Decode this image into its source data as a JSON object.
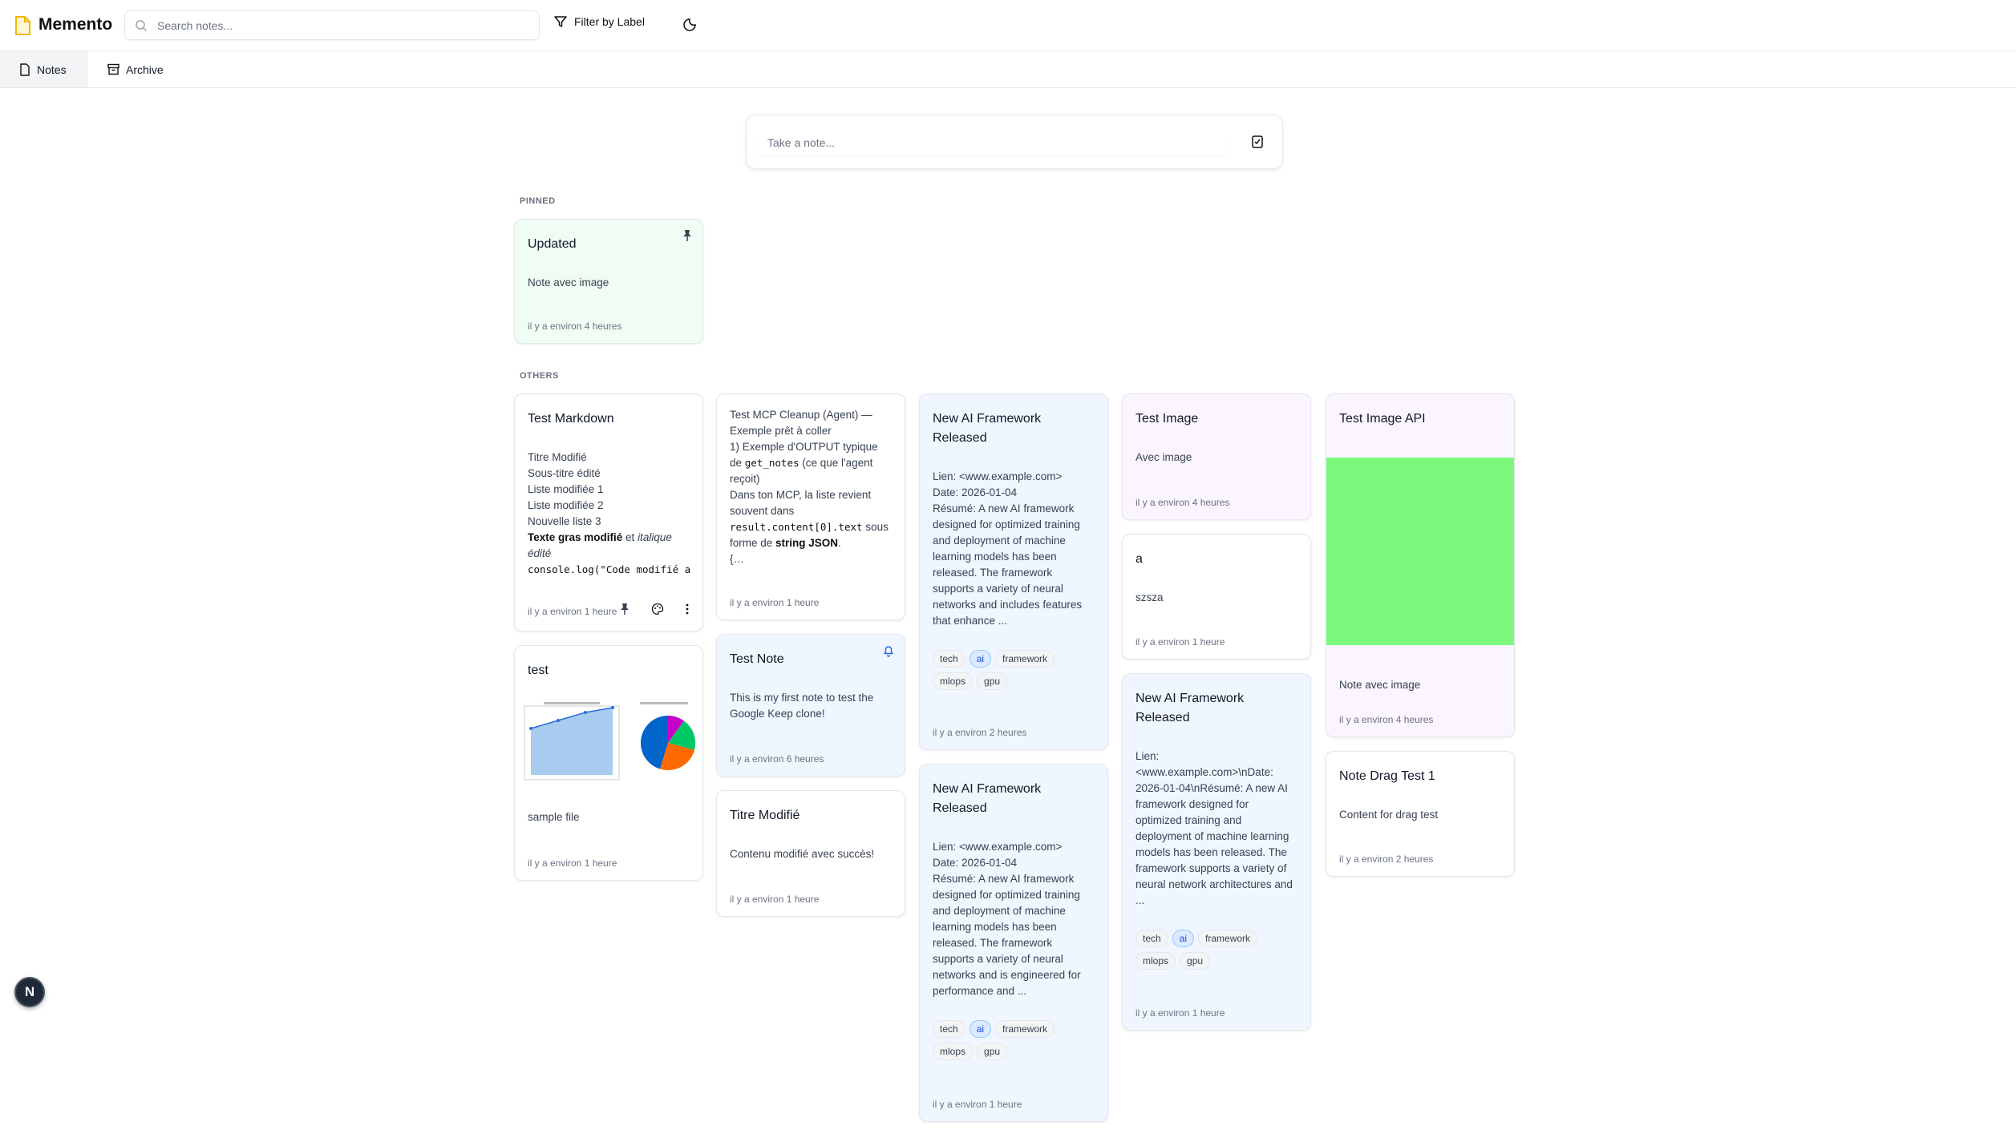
{
  "header": {
    "app_title": "Memento",
    "search_placeholder": "Search notes...",
    "filter_label": "Filter by Label"
  },
  "tabs": [
    {
      "label": "Notes",
      "active": true
    },
    {
      "label": "Archive",
      "active": false
    }
  ],
  "composer": {
    "placeholder": "Take a note..."
  },
  "sections": {
    "pinned": "PINNED",
    "others": "OTHERS"
  },
  "colors": {
    "accent": "#f5b400",
    "pinned_card": "#f0fdf4",
    "blue_card": "#eff6ff",
    "purple_card": "#faf5ff",
    "tag_highlight": "#dbeafe",
    "image_green": "#7cf97c"
  },
  "fab": {
    "label": "N"
  },
  "pinned": [
    {
      "title": "Updated",
      "body": [
        [
          {
            "t": "Note avec image"
          }
        ]
      ],
      "timestamp": "il y a environ 4 heures",
      "color": "#f0fdf4",
      "corner_icon": "pin-icon"
    }
  ],
  "columns": [
    [
      {
        "title": "Test Markdown",
        "body": [
          [
            {
              "t": "Titre Modifié"
            }
          ],
          [
            {
              "t": "Sous-titre édité"
            }
          ],
          [
            {
              "t": "Liste modifiée 1"
            }
          ],
          [
            {
              "t": "Liste modifiée 2"
            }
          ],
          [
            {
              "t": "Nouvelle liste 3"
            }
          ],
          [
            {
              "t": "Texte gras modifié",
              "s": "b"
            },
            {
              "t": " et "
            },
            {
              "t": "italique édité",
              "s": "i"
            }
          ],
          [
            {
              "t": "console.log(\"Code modifié a",
              "s": "code"
            }
          ]
        ],
        "timestamp": "il y a environ 1 heure",
        "color": "#ffffff",
        "actions": [
          "pin-icon",
          "palette-icon",
          "more-vertical-icon"
        ]
      },
      {
        "title": "test",
        "image": "charts",
        "body": [
          [
            {
              "t": "sample file"
            }
          ]
        ],
        "timestamp": "il y a environ 1 heure",
        "color": "#ffffff"
      }
    ],
    [
      {
        "body": [
          [
            {
              "t": "Test MCP Cleanup (Agent) — Exemple prêt à coller"
            }
          ],
          [
            {
              "t": "1) Exemple d'OUTPUT typique de "
            },
            {
              "t": "get_notes",
              "s": "code"
            },
            {
              "t": " (ce que l'agent reçoit)"
            }
          ],
          [
            {
              "t": "Dans ton MCP, la liste revient souvent dans "
            },
            {
              "t": "result.content[0].text",
              "s": "code"
            },
            {
              "t": " sous forme de "
            },
            {
              "t": "string JSON",
              "s": "b"
            },
            {
              "t": "."
            }
          ],
          [
            {
              "t": "{…"
            }
          ]
        ],
        "timestamp": "il y a environ 1 heure",
        "color": "#ffffff"
      },
      {
        "title": "Test Note",
        "body": [
          [
            {
              "t": "This is my first note to test the Google Keep clone!"
            }
          ]
        ],
        "timestamp": "il y a environ 6 heures",
        "color": "#eff6ff",
        "corner_icon": "bell-icon"
      },
      {
        "title": "Titre Modifié",
        "body": [
          [
            {
              "t": "Contenu modifié avec succès!"
            }
          ]
        ],
        "timestamp": "il y a environ 1 heure",
        "color": "#ffffff"
      }
    ],
    [
      {
        "title": "New AI Framework Released",
        "body": [
          [
            {
              "t": "Lien: <www.example.com>"
            }
          ],
          [
            {
              "t": "Date: 2026-01-04"
            }
          ],
          [
            {
              "t": "Résumé: A new AI framework designed for optimized training and deployment of machine learning models has been released. The framework supports a variety of neural networks and includes features that enhance ..."
            }
          ]
        ],
        "tags": [
          "tech",
          "ai",
          "framework",
          "mlops",
          "gpu"
        ],
        "highlight_tag": "ai",
        "timestamp": "il y a environ 2 heures",
        "color": "#eff6ff"
      },
      {
        "title": "New AI Framework Released",
        "body": [
          [
            {
              "t": "Lien: <www.example.com>"
            }
          ],
          [
            {
              "t": "Date: 2026-01-04"
            }
          ],
          [
            {
              "t": "Résumé: A new AI framework designed for optimized training and deployment of machine learning models has been released. The framework supports a variety of neural networks and is engineered for performance and ..."
            }
          ]
        ],
        "tags": [
          "tech",
          "ai",
          "framework",
          "mlops",
          "gpu"
        ],
        "highlight_tag": "ai",
        "timestamp": "il y a environ 1 heure",
        "color": "#eff6ff"
      }
    ],
    [
      {
        "title": "Test Image",
        "body": [
          [
            {
              "t": "Avec image"
            }
          ]
        ],
        "timestamp": "il y a environ 4 heures",
        "color": "#faf5ff"
      },
      {
        "title": "a",
        "body": [
          [
            {
              "t": "szsza"
            }
          ]
        ],
        "timestamp": "il y a environ 1 heure",
        "color": "#ffffff"
      },
      {
        "title": "New AI Framework Released",
        "body": [
          [
            {
              "t": "Lien: <www.example.com>\\nDate: 2026-01-04\\nRésumé: A new AI framework designed for optimized training and deployment of machine learning models has been released. The framework supports a variety of neural network architectures and ..."
            }
          ]
        ],
        "tags": [
          "tech",
          "ai",
          "framework",
          "mlops",
          "gpu"
        ],
        "highlight_tag": "ai",
        "timestamp": "il y a environ 1 heure",
        "color": "#eff6ff"
      }
    ],
    [
      {
        "title": "Test Image API",
        "image": "green",
        "body": [
          [
            {
              "t": "Note avec image"
            }
          ]
        ],
        "timestamp": "il y a environ 4 heures",
        "color": "#faf5ff"
      },
      {
        "title": "Note Drag Test 1",
        "body": [
          [
            {
              "t": "Content for drag test"
            }
          ]
        ],
        "timestamp": "il y a environ 2 heures",
        "color": "#ffffff"
      }
    ]
  ]
}
